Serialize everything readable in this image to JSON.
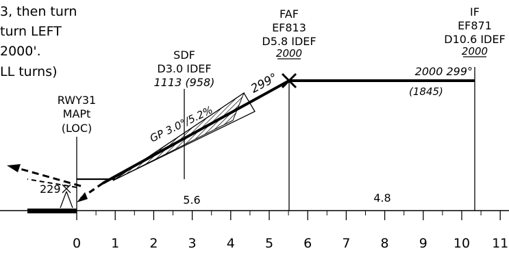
{
  "notes": {
    "line1": "3, then turn",
    "line2": "turn LEFT",
    "line3": "2000'.",
    "line4": "LL turns)"
  },
  "fixes": {
    "rwy": {
      "name": "RWY31",
      "role": "MAPt",
      "type": "(LOC)"
    },
    "sdf": {
      "name": "SDF",
      "dist": "D3.0 IDEF",
      "alt": "1113 (958)"
    },
    "faf": {
      "name": "FAF",
      "id": "EF813",
      "dist": "D5.8 IDEF",
      "alt": "2000"
    },
    "if_fix": {
      "name": "IF",
      "id": "EF871",
      "dist": "D10.6 IDEF",
      "alt": "2000"
    }
  },
  "glidepath": {
    "label": "GP 3.0°/5.2%"
  },
  "course_final": "299°",
  "intermediate": {
    "alt_course": "2000 299°",
    "height": "(1845)"
  },
  "missed": {
    "course": "229"
  },
  "segments": {
    "sdf_to_map": "5.6",
    "faf_to_if": "4.8"
  },
  "scale": {
    "ticks": [
      "0",
      "1",
      "2",
      "3",
      "4",
      "5",
      "6",
      "7",
      "8",
      "9",
      "10",
      "11"
    ]
  }
}
